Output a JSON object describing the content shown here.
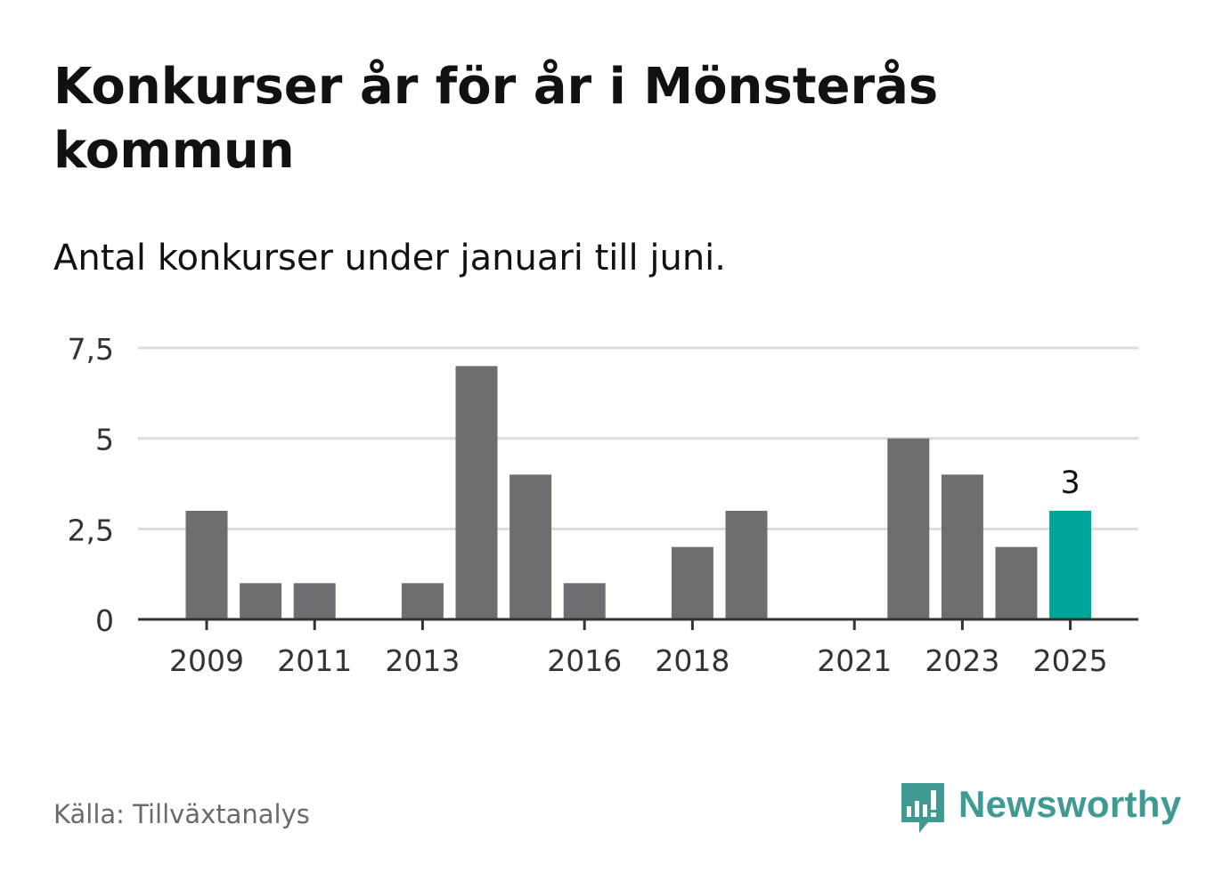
{
  "title": "Konkurser år för år i Mönsterås kommun",
  "subtitle": "Antal konkurser under januari till juni.",
  "source": "Källa: Tillväxtanalys",
  "brand": {
    "name": "Newsworthy",
    "logo_icon": "bar-chart-speech-bubble-icon",
    "color": "#3f9a93"
  },
  "chart_data": {
    "type": "bar",
    "categories": [
      "2009",
      "2010",
      "2011",
      "2012",
      "2013",
      "2014",
      "2015",
      "2016",
      "2017",
      "2018",
      "2019",
      "2020",
      "2021",
      "2022",
      "2023",
      "2024",
      "2025"
    ],
    "values": [
      3,
      1,
      1,
      0,
      1,
      7,
      4,
      1,
      0,
      2,
      3,
      0,
      0,
      5,
      4,
      2,
      3
    ],
    "x_tick_labels": [
      "2009",
      "2011",
      "2013",
      "2016",
      "2018",
      "2021",
      "2023",
      "2025"
    ],
    "y_ticks": [
      0,
      2.5,
      5,
      7.5
    ],
    "y_tick_labels": [
      "0",
      "2,5",
      "5",
      "7,5"
    ],
    "ylim": [
      0,
      7.5
    ],
    "grid": true,
    "highlight": {
      "category": "2025",
      "label": "3"
    },
    "colors": {
      "bar": "#6e6d72",
      "highlight": "#00a59a",
      "grid": "#dcdcdc",
      "axis": "#333333"
    }
  }
}
